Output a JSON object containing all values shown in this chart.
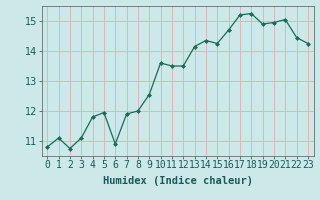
{
  "x": [
    0,
    1,
    2,
    3,
    4,
    5,
    6,
    7,
    8,
    9,
    10,
    11,
    12,
    13,
    14,
    15,
    16,
    17,
    18,
    19,
    20,
    21,
    22,
    23
  ],
  "y": [
    10.8,
    11.1,
    10.75,
    11.1,
    11.8,
    11.95,
    10.9,
    11.9,
    12.0,
    12.55,
    13.6,
    13.5,
    13.5,
    14.15,
    14.35,
    14.25,
    14.7,
    15.2,
    15.25,
    14.9,
    14.95,
    15.05,
    14.45,
    14.25
  ],
  "line_color": "#1a6b5a",
  "marker": "D",
  "marker_size": 2,
  "bg_color": "#cce8e8",
  "grid_color": "#d8b8b8",
  "xlabel": "Humidex (Indice chaleur)",
  "xlabel_fontsize": 7.5,
  "tick_label_fontsize": 7,
  "ylim": [
    10.5,
    15.5
  ],
  "yticks": [
    11,
    12,
    13,
    14,
    15
  ],
  "xtick_labels": [
    "0",
    "1",
    "2",
    "3",
    "4",
    "5",
    "6",
    "7",
    "8",
    "9",
    "10",
    "11",
    "12",
    "13",
    "14",
    "15",
    "16",
    "17",
    "18",
    "19",
    "20",
    "21",
    "22",
    "23"
  ]
}
